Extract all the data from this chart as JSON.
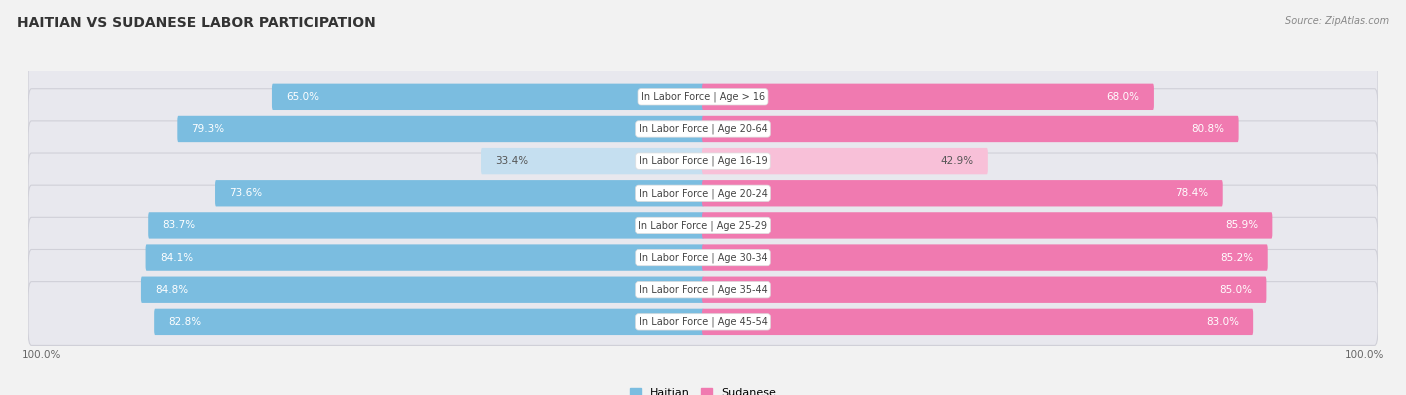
{
  "title": "HAITIAN VS SUDANESE LABOR PARTICIPATION",
  "source": "Source: ZipAtlas.com",
  "categories": [
    "In Labor Force | Age > 16",
    "In Labor Force | Age 20-64",
    "In Labor Force | Age 16-19",
    "In Labor Force | Age 20-24",
    "In Labor Force | Age 25-29",
    "In Labor Force | Age 30-34",
    "In Labor Force | Age 35-44",
    "In Labor Force | Age 45-54"
  ],
  "haitian": [
    65.0,
    79.3,
    33.4,
    73.6,
    83.7,
    84.1,
    84.8,
    82.8
  ],
  "sudanese": [
    68.0,
    80.8,
    42.9,
    78.4,
    85.9,
    85.2,
    85.0,
    83.0
  ],
  "haitian_color": "#7bbde0",
  "haitian_color_light": "#c5dff0",
  "sudanese_color": "#f07ab0",
  "sudanese_color_light": "#f8c0d8",
  "bg_color": "#f2f2f2",
  "row_bg": "#e8e8ec",
  "bar_height": 0.52,
  "max_val": 100.0,
  "title_fontsize": 10,
  "label_fontsize": 7.5,
  "cat_fontsize": 7.0,
  "tick_fontsize": 7.5,
  "legend_fontsize": 8
}
